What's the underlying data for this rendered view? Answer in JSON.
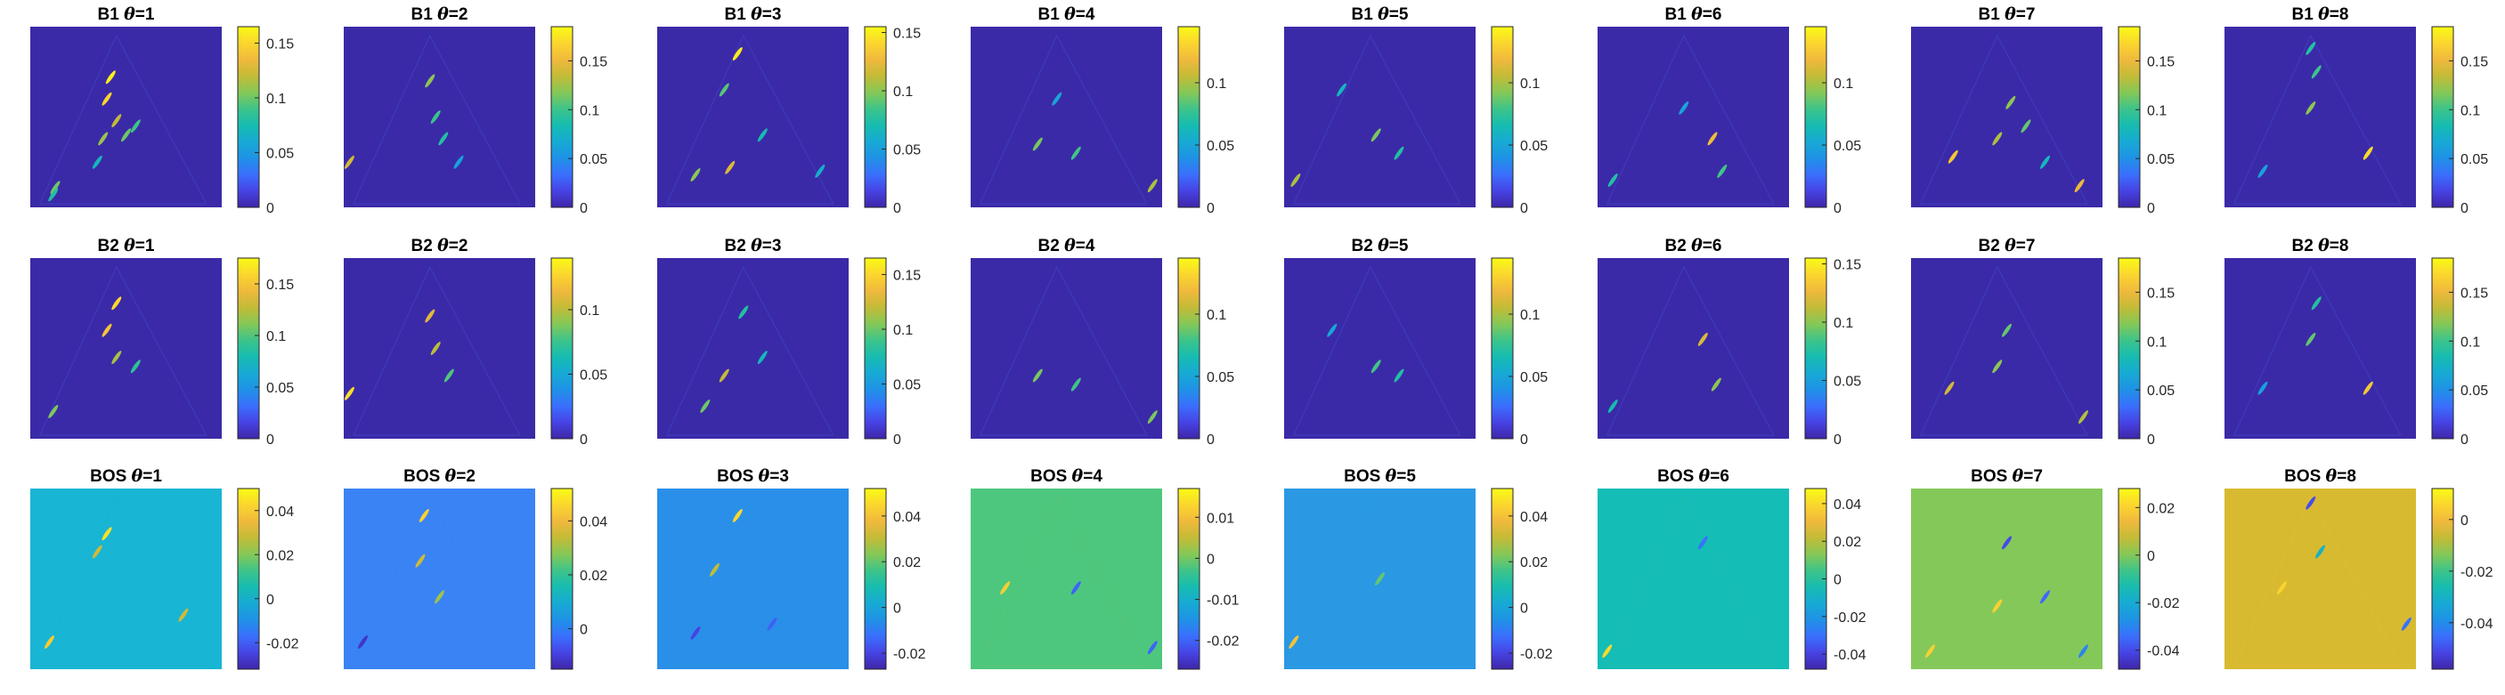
{
  "figure": {
    "colormap": [
      "#3e26a8",
      "#4743e4",
      "#3a6ffd",
      "#1f92e6",
      "#17aad4",
      "#17bcb0",
      "#3dc48a",
      "#85c857",
      "#c3bb37",
      "#f0b93d",
      "#fbd62e",
      "#f9fb15"
    ],
    "field_color": "#3a2ca6"
  },
  "chart_data": [
    {
      "type": "heatmap",
      "panel": "B1-1",
      "title_prefix": "B1 ",
      "title_theta": "θ",
      "title_suffix": "=1",
      "clim": [
        0,
        0.165
      ],
      "background": "#3b2aa7",
      "ticks": [
        "0",
        "0.05",
        "0.1",
        "0.15"
      ],
      "tick_values": [
        0,
        0.05,
        0.1,
        0.15
      ],
      "features": [
        {
          "x": 0.13,
          "y": 0.89,
          "v": 0.1
        },
        {
          "x": 0.12,
          "y": 0.93,
          "v": 0.08
        },
        {
          "x": 0.35,
          "y": 0.75,
          "v": 0.07
        },
        {
          "x": 0.45,
          "y": 0.52,
          "v": 0.12
        },
        {
          "x": 0.4,
          "y": 0.4,
          "v": 0.15
        },
        {
          "x": 0.42,
          "y": 0.28,
          "v": 0.16
        },
        {
          "x": 0.5,
          "y": 0.6,
          "v": 0.1
        },
        {
          "x": 0.55,
          "y": 0.55,
          "v": 0.09
        },
        {
          "x": 0.38,
          "y": 0.62,
          "v": 0.11
        }
      ]
    },
    {
      "type": "heatmap",
      "panel": "B1-2",
      "title_prefix": "B1 ",
      "title_theta": "θ",
      "title_suffix": "=2",
      "clim": [
        0,
        0.185
      ],
      "background": "#3b2aa7",
      "ticks": [
        "0",
        "0.05",
        "0.1",
        "0.15"
      ],
      "tick_values": [
        0,
        0.05,
        0.1,
        0.15
      ],
      "features": [
        {
          "x": 0.03,
          "y": 0.75,
          "v": 0.14
        },
        {
          "x": 0.45,
          "y": 0.3,
          "v": 0.12
        },
        {
          "x": 0.48,
          "y": 0.5,
          "v": 0.1
        },
        {
          "x": 0.52,
          "y": 0.62,
          "v": 0.09
        },
        {
          "x": 0.6,
          "y": 0.75,
          "v": 0.06
        }
      ]
    },
    {
      "type": "heatmap",
      "panel": "B1-3",
      "title_prefix": "B1 ",
      "title_theta": "θ",
      "title_suffix": "=3",
      "clim": [
        0,
        0.155
      ],
      "background": "#3b2aa7",
      "ticks": [
        "0",
        "0.05",
        "0.1",
        "0.15"
      ],
      "tick_values": [
        0,
        0.05,
        0.1,
        0.15
      ],
      "features": [
        {
          "x": 0.42,
          "y": 0.15,
          "v": 0.15
        },
        {
          "x": 0.35,
          "y": 0.35,
          "v": 0.09
        },
        {
          "x": 0.38,
          "y": 0.78,
          "v": 0.12
        },
        {
          "x": 0.2,
          "y": 0.82,
          "v": 0.1
        },
        {
          "x": 0.55,
          "y": 0.6,
          "v": 0.07
        },
        {
          "x": 0.85,
          "y": 0.8,
          "v": 0.06
        }
      ]
    },
    {
      "type": "heatmap",
      "panel": "B1-4",
      "title_prefix": "B1 ",
      "title_theta": "θ",
      "title_suffix": "=4",
      "clim": [
        0,
        0.145
      ],
      "background": "#3b2aa7",
      "ticks": [
        "0",
        "0.05",
        "0.1"
      ],
      "tick_values": [
        0,
        0.05,
        0.1
      ],
      "features": [
        {
          "x": 0.35,
          "y": 0.65,
          "v": 0.09
        },
        {
          "x": 0.55,
          "y": 0.7,
          "v": 0.08
        },
        {
          "x": 0.95,
          "y": 0.88,
          "v": 0.1
        },
        {
          "x": 0.45,
          "y": 0.4,
          "v": 0.05
        }
      ]
    },
    {
      "type": "heatmap",
      "panel": "B1-5",
      "title_prefix": "B1 ",
      "title_theta": "θ",
      "title_suffix": "=5",
      "clim": [
        0,
        0.145
      ],
      "background": "#3b2aa7",
      "ticks": [
        "0",
        "0.05",
        "0.1"
      ],
      "tick_values": [
        0,
        0.05,
        0.1
      ],
      "features": [
        {
          "x": 0.48,
          "y": 0.6,
          "v": 0.09
        },
        {
          "x": 0.6,
          "y": 0.7,
          "v": 0.07
        },
        {
          "x": 0.06,
          "y": 0.85,
          "v": 0.1
        },
        {
          "x": 0.3,
          "y": 0.35,
          "v": 0.06
        }
      ]
    },
    {
      "type": "heatmap",
      "panel": "B1-6",
      "title_prefix": "B1 ",
      "title_theta": "θ",
      "title_suffix": "=6",
      "clim": [
        0,
        0.145
      ],
      "background": "#3b2aa7",
      "ticks": [
        "0",
        "0.05",
        "0.1"
      ],
      "tick_values": [
        0,
        0.05,
        0.1
      ],
      "features": [
        {
          "x": 0.6,
          "y": 0.62,
          "v": 0.12
        },
        {
          "x": 0.65,
          "y": 0.8,
          "v": 0.08
        },
        {
          "x": 0.08,
          "y": 0.85,
          "v": 0.07
        },
        {
          "x": 0.45,
          "y": 0.45,
          "v": 0.05
        }
      ]
    },
    {
      "type": "heatmap",
      "panel": "B1-7",
      "title_prefix": "B1 ",
      "title_theta": "θ",
      "title_suffix": "=7",
      "clim": [
        0,
        0.185
      ],
      "background": "#3b2aa7",
      "ticks": [
        "0",
        "0.05",
        "0.1",
        "0.15"
      ],
      "tick_values": [
        0,
        0.05,
        0.1,
        0.15
      ],
      "features": [
        {
          "x": 0.22,
          "y": 0.72,
          "v": 0.16
        },
        {
          "x": 0.45,
          "y": 0.62,
          "v": 0.13
        },
        {
          "x": 0.52,
          "y": 0.42,
          "v": 0.12
        },
        {
          "x": 0.6,
          "y": 0.55,
          "v": 0.11
        },
        {
          "x": 0.88,
          "y": 0.88,
          "v": 0.15
        },
        {
          "x": 0.7,
          "y": 0.75,
          "v": 0.08
        }
      ]
    },
    {
      "type": "heatmap",
      "panel": "B1-8",
      "title_prefix": "B1 ",
      "title_theta": "θ",
      "title_suffix": "=8",
      "clim": [
        0,
        0.185
      ],
      "background": "#3b2aa7",
      "ticks": [
        "0",
        "0.05",
        "0.1",
        "0.15"
      ],
      "tick_values": [
        0,
        0.05,
        0.1,
        0.15
      ],
      "features": [
        {
          "x": 0.75,
          "y": 0.7,
          "v": 0.17
        },
        {
          "x": 0.45,
          "y": 0.45,
          "v": 0.12
        },
        {
          "x": 0.48,
          "y": 0.25,
          "v": 0.1
        },
        {
          "x": 0.45,
          "y": 0.12,
          "v": 0.09
        },
        {
          "x": 0.2,
          "y": 0.8,
          "v": 0.06
        }
      ]
    },
    {
      "type": "heatmap",
      "panel": "B2-1",
      "title_prefix": "B2 ",
      "title_theta": "θ",
      "title_suffix": "=1",
      "clim": [
        0,
        0.175
      ],
      "background": "#3b2aa7",
      "ticks": [
        "0",
        "0.05",
        "0.1",
        "0.15"
      ],
      "tick_values": [
        0,
        0.05,
        0.1,
        0.15
      ],
      "features": [
        {
          "x": 0.45,
          "y": 0.25,
          "v": 0.16
        },
        {
          "x": 0.4,
          "y": 0.4,
          "v": 0.15
        },
        {
          "x": 0.45,
          "y": 0.55,
          "v": 0.12
        },
        {
          "x": 0.12,
          "y": 0.85,
          "v": 0.11
        },
        {
          "x": 0.55,
          "y": 0.6,
          "v": 0.09
        }
      ]
    },
    {
      "type": "heatmap",
      "panel": "B2-2",
      "title_prefix": "B2 ",
      "title_theta": "θ",
      "title_suffix": "=2",
      "clim": [
        0,
        0.14
      ],
      "background": "#3b2aa7",
      "ticks": [
        "0",
        "0.05",
        "0.1"
      ],
      "tick_values": [
        0,
        0.05,
        0.1
      ],
      "features": [
        {
          "x": 0.03,
          "y": 0.75,
          "v": 0.13
        },
        {
          "x": 0.45,
          "y": 0.32,
          "v": 0.11
        },
        {
          "x": 0.48,
          "y": 0.5,
          "v": 0.1
        },
        {
          "x": 0.55,
          "y": 0.65,
          "v": 0.08
        }
      ]
    },
    {
      "type": "heatmap",
      "panel": "B2-3",
      "title_prefix": "B2 ",
      "title_theta": "θ",
      "title_suffix": "=3",
      "clim": [
        0,
        0.165
      ],
      "background": "#3b2aa7",
      "ticks": [
        "0",
        "0.05",
        "0.1",
        "0.15"
      ],
      "tick_values": [
        0,
        0.05,
        0.1,
        0.15
      ],
      "features": [
        {
          "x": 0.35,
          "y": 0.65,
          "v": 0.12
        },
        {
          "x": 0.25,
          "y": 0.82,
          "v": 0.1
        },
        {
          "x": 0.45,
          "y": 0.3,
          "v": 0.08
        },
        {
          "x": 0.55,
          "y": 0.55,
          "v": 0.07
        }
      ]
    },
    {
      "type": "heatmap",
      "panel": "B2-4",
      "title_prefix": "B2 ",
      "title_theta": "θ",
      "title_suffix": "=4",
      "clim": [
        0,
        0.145
      ],
      "background": "#3b2aa7",
      "ticks": [
        "0",
        "0.05",
        "0.1"
      ],
      "tick_values": [
        0,
        0.05,
        0.1
      ],
      "features": [
        {
          "x": 0.35,
          "y": 0.65,
          "v": 0.09
        },
        {
          "x": 0.55,
          "y": 0.7,
          "v": 0.08
        },
        {
          "x": 0.95,
          "y": 0.88,
          "v": 0.09
        }
      ]
    },
    {
      "type": "heatmap",
      "panel": "B2-5",
      "title_prefix": "B2 ",
      "title_theta": "θ",
      "title_suffix": "=5",
      "clim": [
        0,
        0.145
      ],
      "background": "#3b2aa7",
      "ticks": [
        "0",
        "0.05",
        "0.1"
      ],
      "tick_values": [
        0,
        0.05,
        0.1
      ],
      "features": [
        {
          "x": 0.48,
          "y": 0.6,
          "v": 0.08
        },
        {
          "x": 0.6,
          "y": 0.65,
          "v": 0.07
        },
        {
          "x": 0.25,
          "y": 0.4,
          "v": 0.05
        }
      ]
    },
    {
      "type": "heatmap",
      "panel": "B2-6",
      "title_prefix": "B2 ",
      "title_theta": "θ",
      "title_suffix": "=6",
      "clim": [
        0,
        0.155
      ],
      "background": "#3b2aa7",
      "ticks": [
        "0",
        "0.05",
        "0.1",
        "0.15"
      ],
      "tick_values": [
        0,
        0.05,
        0.1,
        0.15
      ],
      "features": [
        {
          "x": 0.55,
          "y": 0.45,
          "v": 0.12
        },
        {
          "x": 0.62,
          "y": 0.7,
          "v": 0.1
        },
        {
          "x": 0.08,
          "y": 0.82,
          "v": 0.07
        }
      ]
    },
    {
      "type": "heatmap",
      "panel": "B2-7",
      "title_prefix": "B2 ",
      "title_theta": "θ",
      "title_suffix": "=7",
      "clim": [
        0,
        0.185
      ],
      "background": "#3b2aa7",
      "ticks": [
        "0",
        "0.05",
        "0.1",
        "0.15"
      ],
      "tick_values": [
        0,
        0.05,
        0.1,
        0.15
      ],
      "features": [
        {
          "x": 0.2,
          "y": 0.72,
          "v": 0.14
        },
        {
          "x": 0.45,
          "y": 0.6,
          "v": 0.12
        },
        {
          "x": 0.5,
          "y": 0.4,
          "v": 0.11
        },
        {
          "x": 0.9,
          "y": 0.88,
          "v": 0.13
        }
      ]
    },
    {
      "type": "heatmap",
      "panel": "B2-8",
      "title_prefix": "B2 ",
      "title_theta": "θ",
      "title_suffix": "=8",
      "clim": [
        0,
        0.185
      ],
      "background": "#3b2aa7",
      "ticks": [
        "0",
        "0.05",
        "0.1",
        "0.15"
      ],
      "tick_values": [
        0,
        0.05,
        0.1,
        0.15
      ],
      "features": [
        {
          "x": 0.75,
          "y": 0.72,
          "v": 0.16
        },
        {
          "x": 0.45,
          "y": 0.45,
          "v": 0.11
        },
        {
          "x": 0.48,
          "y": 0.25,
          "v": 0.09
        },
        {
          "x": 0.2,
          "y": 0.72,
          "v": 0.06
        }
      ]
    },
    {
      "type": "heatmap",
      "panel": "BOS-1",
      "title_prefix": "BOS ",
      "title_theta": "θ",
      "title_suffix": "=1",
      "clim": [
        -0.032,
        0.05
      ],
      "background": "#19b5d4",
      "ticks": [
        "-0.02",
        "0",
        "0.02",
        "0.04"
      ],
      "tick_values": [
        -0.02,
        0,
        0.02,
        0.04
      ],
      "features": [
        {
          "x": 0.4,
          "y": 0.25,
          "v": 0.045
        },
        {
          "x": 0.35,
          "y": 0.35,
          "v": 0.03
        },
        {
          "x": 0.1,
          "y": 0.85,
          "v": 0.04
        },
        {
          "x": 0.8,
          "y": 0.7,
          "v": 0.03
        }
      ]
    },
    {
      "type": "heatmap",
      "panel": "BOS-2",
      "title_prefix": "BOS ",
      "title_theta": "θ",
      "title_suffix": "=2",
      "clim": [
        -0.015,
        0.052
      ],
      "background": "#3a83f5",
      "ticks": [
        "0",
        "0.02",
        "0.04"
      ],
      "tick_values": [
        0,
        0.02,
        0.04
      ],
      "features": [
        {
          "x": 0.42,
          "y": 0.15,
          "v": 0.045
        },
        {
          "x": 0.4,
          "y": 0.4,
          "v": 0.035
        },
        {
          "x": 0.1,
          "y": 0.85,
          "v": -0.012
        },
        {
          "x": 0.5,
          "y": 0.6,
          "v": 0.03
        }
      ]
    },
    {
      "type": "heatmap",
      "panel": "BOS-3",
      "title_prefix": "BOS ",
      "title_theta": "θ",
      "title_suffix": "=3",
      "clim": [
        -0.027,
        0.052
      ],
      "background": "#2a8fe8",
      "ticks": [
        "-0.02",
        "0",
        "0.02",
        "0.04"
      ],
      "tick_values": [
        -0.02,
        0,
        0.02,
        0.04
      ],
      "features": [
        {
          "x": 0.42,
          "y": 0.15,
          "v": 0.045
        },
        {
          "x": 0.3,
          "y": 0.45,
          "v": 0.03
        },
        {
          "x": 0.2,
          "y": 0.8,
          "v": -0.02
        },
        {
          "x": 0.6,
          "y": 0.75,
          "v": -0.015
        }
      ]
    },
    {
      "type": "heatmap",
      "panel": "BOS-4",
      "title_prefix": "BOS ",
      "title_theta": "θ",
      "title_suffix": "=4",
      "clim": [
        -0.027,
        0.017
      ],
      "background": "#4dc77e",
      "ticks": [
        "-0.02",
        "-0.01",
        "0",
        "0.01"
      ],
      "tick_values": [
        -0.02,
        -0.01,
        0,
        0.01
      ],
      "features": [
        {
          "x": 0.18,
          "y": 0.55,
          "v": 0.012
        },
        {
          "x": 0.55,
          "y": 0.55,
          "v": -0.02
        },
        {
          "x": 0.95,
          "y": 0.88,
          "v": -0.02
        }
      ]
    },
    {
      "type": "heatmap",
      "panel": "BOS-5",
      "title_prefix": "BOS ",
      "title_theta": "θ",
      "title_suffix": "=5",
      "clim": [
        -0.027,
        0.052
      ],
      "background": "#2b98e4",
      "ticks": [
        "-0.02",
        "0",
        "0.02",
        "0.04"
      ],
      "tick_values": [
        -0.02,
        0,
        0.02,
        0.04
      ],
      "features": [
        {
          "x": 0.05,
          "y": 0.85,
          "v": 0.04
        },
        {
          "x": 0.5,
          "y": 0.5,
          "v": 0.02
        }
      ]
    },
    {
      "type": "heatmap",
      "panel": "BOS-6",
      "title_prefix": "BOS ",
      "title_theta": "θ",
      "title_suffix": "=6",
      "clim": [
        -0.048,
        0.048
      ],
      "background": "#14bdb6",
      "ticks": [
        "-0.04",
        "-0.02",
        "0",
        "0.02",
        "0.04"
      ],
      "tick_values": [
        -0.04,
        -0.02,
        0,
        0.02,
        0.04
      ],
      "features": [
        {
          "x": 0.55,
          "y": 0.3,
          "v": -0.03
        },
        {
          "x": 0.05,
          "y": 0.9,
          "v": 0.04
        }
      ]
    },
    {
      "type": "heatmap",
      "panel": "BOS-7",
      "title_prefix": "BOS ",
      "title_theta": "θ",
      "title_suffix": "=7",
      "clim": [
        -0.048,
        0.028
      ],
      "background": "#85c85a",
      "ticks": [
        "-0.04",
        "-0.02",
        "0",
        "0.02"
      ],
      "tick_values": [
        -0.04,
        -0.02,
        0,
        0.02
      ],
      "features": [
        {
          "x": 0.5,
          "y": 0.3,
          "v": -0.04
        },
        {
          "x": 0.7,
          "y": 0.6,
          "v": -0.035
        },
        {
          "x": 0.45,
          "y": 0.65,
          "v": 0.02
        },
        {
          "x": 0.1,
          "y": 0.9,
          "v": 0.02
        },
        {
          "x": 0.9,
          "y": 0.9,
          "v": -0.03
        }
      ]
    },
    {
      "type": "heatmap",
      "panel": "BOS-8",
      "title_prefix": "BOS ",
      "title_theta": "θ",
      "title_suffix": "=8",
      "clim": [
        -0.058,
        0.012
      ],
      "background": "#d8ba30",
      "ticks": [
        "-0.04",
        "-0.02",
        "0"
      ],
      "tick_values": [
        -0.04,
        -0.02,
        0
      ],
      "features": [
        {
          "x": 0.45,
          "y": 0.08,
          "v": -0.05
        },
        {
          "x": 0.5,
          "y": 0.35,
          "v": -0.03
        },
        {
          "x": 0.95,
          "y": 0.75,
          "v": -0.045
        },
        {
          "x": 0.3,
          "y": 0.55,
          "v": 0.005
        }
      ]
    }
  ]
}
